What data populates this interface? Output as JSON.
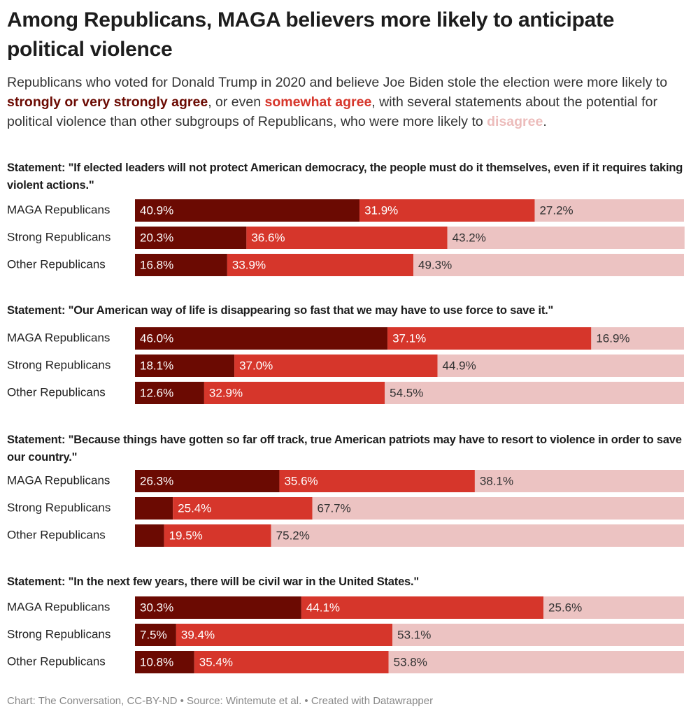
{
  "title": "Among Republicans, MAGA believers more likely to anticipate political violence",
  "subtitle": [
    "Republicans who voted for Donald Trump in 2020 and believe Joe Biden stole the election were more likely to ",
    "strongly or very strongly agree",
    ", or even ",
    "somewhat agree",
    ", with several statements about the potential for political violence than other subgroups of Republicans, who were more likely to ",
    "disagree",
    "."
  ],
  "footer": "Chart: The Conversation, CC-BY-ND • Source: Wintemute et al. • Created with Datawrapper",
  "chart_data": [
    {
      "type": "stacked_bar",
      "title": "Statement: \"If elected leaders will not protect American democracy, the people must do it themselves, even if it requires taking violent actions.\"",
      "categories": [
        "MAGA Republicans",
        "Strong Republicans",
        "Other Republicans"
      ],
      "xlim": [
        0,
        100
      ],
      "series": [
        {
          "color": "#6b0a02",
          "values": [
            40.9,
            20.3,
            16.8
          ],
          "value_labels": [
            "40.9%",
            "20.3%",
            "16.8%"
          ]
        },
        {
          "color": "#d6362b",
          "values": [
            31.9,
            36.6,
            33.9
          ],
          "value_labels": [
            "31.9%",
            "36.6%",
            "33.9%"
          ]
        },
        {
          "color": "#ecc3c2",
          "values": [
            27.2,
            43.2,
            49.3
          ],
          "value_labels": [
            "27.2%",
            "43.2%",
            "49.3%"
          ]
        }
      ]
    },
    {
      "type": "stacked_bar",
      "title": "Statement: \"Our American way of life is disappearing so fast that we may have to use force to save it.\"",
      "categories": [
        "MAGA Republicans",
        "Strong Republicans",
        "Other Republicans"
      ],
      "xlim": [
        0,
        100
      ],
      "series": [
        {
          "color": "#6b0a02",
          "values": [
            46.0,
            18.1,
            12.6
          ],
          "value_labels": [
            "46.0%",
            "18.1%",
            "12.6%"
          ]
        },
        {
          "color": "#d6362b",
          "values": [
            37.1,
            37.0,
            32.9
          ],
          "value_labels": [
            "37.1%",
            "37.0%",
            "32.9%"
          ]
        },
        {
          "color": "#ecc3c2",
          "values": [
            16.9,
            44.9,
            54.5
          ],
          "value_labels": [
            "16.9%",
            "44.9%",
            "54.5%"
          ]
        }
      ]
    },
    {
      "type": "stacked_bar",
      "title": "Statement: \"Because things have gotten so far off track, true American patriots may have to resort to violence in order to save our country.\"",
      "categories": [
        "MAGA Republicans",
        "Strong Republicans",
        "Other Republicans"
      ],
      "xlim": [
        0,
        100
      ],
      "series": [
        {
          "color": "#6b0a02",
          "values": [
            26.3,
            6.9,
            5.3
          ],
          "value_labels": [
            "26.3%",
            null,
            null
          ]
        },
        {
          "color": "#d6362b",
          "values": [
            35.6,
            25.4,
            19.5
          ],
          "value_labels": [
            "35.6%",
            "25.4%",
            "19.5%"
          ]
        },
        {
          "color": "#ecc3c2",
          "values": [
            38.1,
            67.7,
            75.2
          ],
          "value_labels": [
            "38.1%",
            "67.7%",
            "75.2%"
          ]
        }
      ]
    },
    {
      "type": "stacked_bar",
      "title": "Statement: \"In the next few years, there will be civil war in the United States.\"",
      "categories": [
        "MAGA Republicans",
        "Strong Republicans",
        "Other Republicans"
      ],
      "xlim": [
        0,
        100
      ],
      "series": [
        {
          "color": "#6b0a02",
          "values": [
            30.3,
            7.5,
            10.8
          ],
          "value_labels": [
            "30.3%",
            "7.5%",
            "10.8%"
          ]
        },
        {
          "color": "#d6362b",
          "values": [
            44.1,
            39.4,
            35.4
          ],
          "value_labels": [
            "44.1%",
            "39.4%",
            "35.4%"
          ]
        },
        {
          "color": "#ecc3c2",
          "values": [
            25.6,
            53.1,
            53.8
          ],
          "value_labels": [
            "25.6%",
            "53.1%",
            "53.8%"
          ]
        }
      ]
    }
  ]
}
